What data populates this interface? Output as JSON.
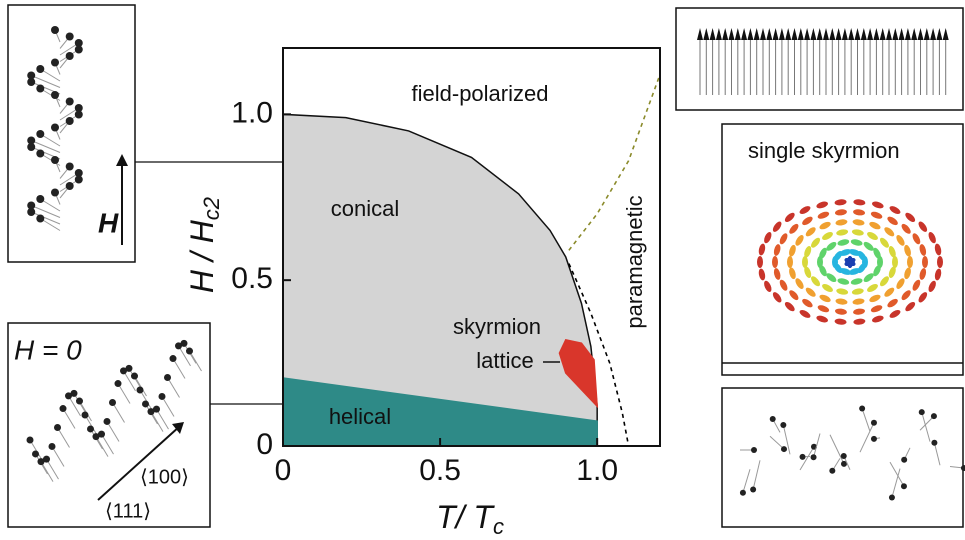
{
  "chart_data": {
    "type": "phase-diagram",
    "xlabel": {
      "text": "T/ T",
      "sub": "c"
    },
    "ylabel": {
      "text": "H / H",
      "sub": "c2"
    },
    "xlim": [
      0,
      1.2
    ],
    "ylim": [
      0,
      1.2
    ],
    "xticks": [
      0,
      0.5,
      {
        "value": 1,
        "label": "1.0"
      }
    ],
    "yticks": [
      0,
      0.5,
      {
        "value": 1,
        "label": "1.0"
      }
    ],
    "annotations": [
      "field-polarized",
      "conical",
      "helical",
      "skyrmion",
      "lattice",
      "paramagnetic"
    ],
    "series": [
      {
        "color": "#d4d4d4",
        "fill": true,
        "x": [
          0,
          0,
          0.2,
          0.4,
          0.6,
          0.75,
          0.85,
          0.9,
          0.95,
          0.98,
          1.0,
          1.0
        ],
        "values": [
          0,
          1.0,
          0.99,
          0.95,
          0.87,
          0.76,
          0.65,
          0.57,
          0.43,
          0.3,
          0.12,
          0
        ]
      },
      {
        "color": "#2e8a87",
        "fill": true,
        "x": [
          0,
          0,
          1.0,
          1.0
        ],
        "values": [
          0,
          0.205,
          0.075,
          0
        ]
      },
      {
        "color": "#d9362b",
        "fill": true,
        "x": [
          0.88,
          0.9,
          0.95,
          0.99,
          1.0,
          0.96,
          0.9
        ],
        "values": [
          0.28,
          0.32,
          0.31,
          0.26,
          0.12,
          0.16,
          0.22
        ]
      },
      {
        "color": "#000000",
        "dash": true,
        "x": [
          0.91,
          0.98,
          1.04,
          1.08,
          1.1
        ],
        "values": [
          0.55,
          0.4,
          0.25,
          0.1,
          0
        ]
      },
      {
        "color": "#8a8a2a",
        "dash": true,
        "x": [
          0.91,
          1.0,
          1.1,
          1.2
        ],
        "values": [
          0.59,
          0.7,
          0.86,
          1.12
        ]
      }
    ]
  },
  "insets": {
    "field_label": "H",
    "zero_field": "H = 0",
    "dir_a": "⟨100⟩",
    "dir_b": "⟨111⟩",
    "skyrmion_title": "single skyrmion"
  }
}
